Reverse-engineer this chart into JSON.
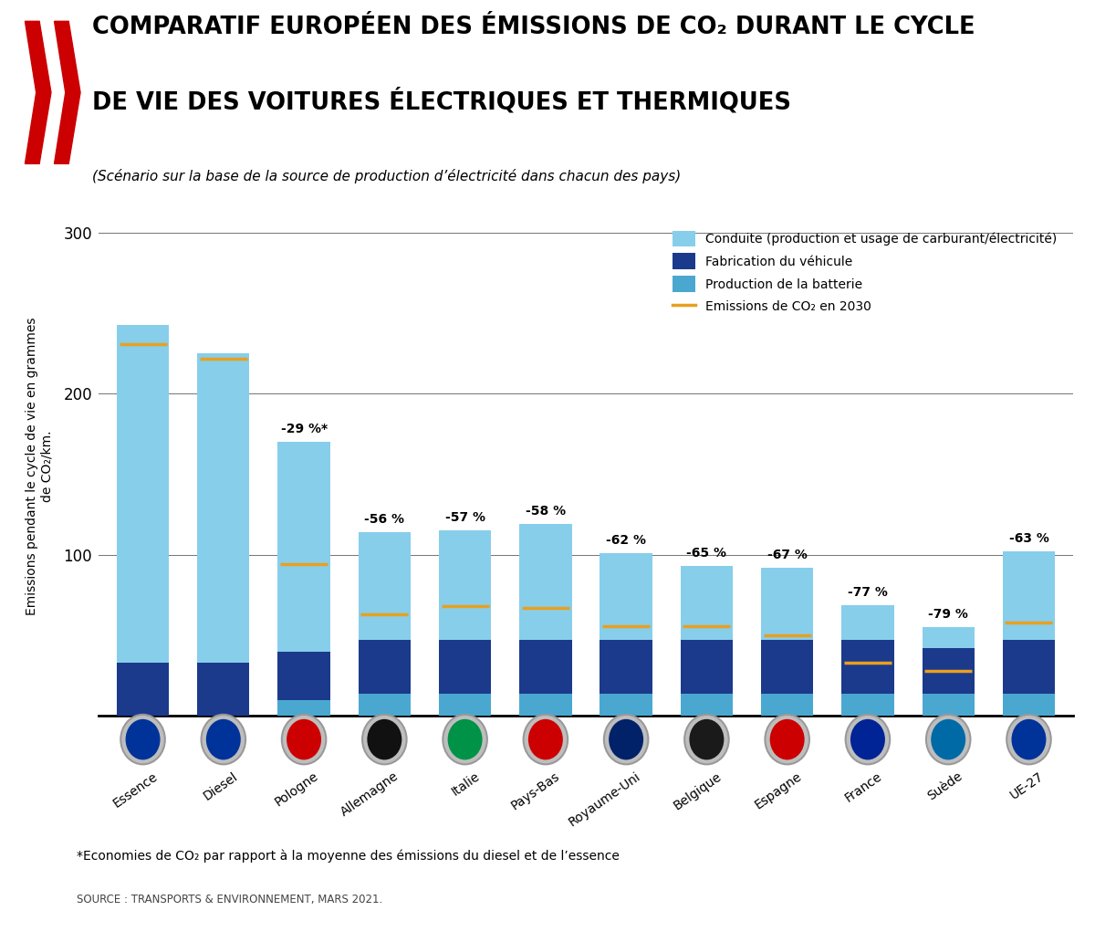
{
  "categories": [
    "Essence",
    "Diesel",
    "Pologne",
    "Allemagne",
    "Italie",
    "Pays-Bas",
    "Royaume-Uni",
    "Belgique",
    "Espagne",
    "France",
    "Suède",
    "UE-27"
  ],
  "conduite": [
    210,
    192,
    130,
    67,
    68,
    72,
    54,
    46,
    45,
    22,
    13,
    55
  ],
  "fabrication": [
    33,
    33,
    30,
    33,
    33,
    33,
    33,
    33,
    33,
    33,
    28,
    33
  ],
  "batterie": [
    0,
    0,
    10,
    14,
    14,
    14,
    14,
    14,
    14,
    14,
    14,
    14
  ],
  "co2_2030": [
    231,
    222,
    94,
    63,
    68,
    67,
    56,
    56,
    50,
    33,
    28,
    58
  ],
  "pct_labels": [
    "",
    "",
    "-29 %*",
    "-56 %",
    "-57 %",
    "-58 %",
    "-62 %",
    "-65 %",
    "-67 %",
    "-77 %",
    "-79 %",
    "-63 %"
  ],
  "color_conduite": "#87CEEB",
  "color_fabrication": "#1B3A8C",
  "color_batterie": "#4AA8D0",
  "color_co2_line": "#E8A020",
  "color_title_red": "#CC0000",
  "legend_conduite": "Conduite (production et usage de carburant/électricité)",
  "legend_fabrication": "Fabrication du véhicule",
  "legend_batterie": "Production de la batterie",
  "legend_co2": "Emissions de CO₂ en 2030",
  "ylabel": "Emissions pendant le cycle de vie en grammes\nde CO₂/km.",
  "footnote": "*Economies de CO₂ par rapport à la moyenne des émissions du diesel et de l’essence",
  "source": "SOURCE : TRANSPORTS & ENVIRONNEMENT, MARS 2021.",
  "ylim": [
    0,
    310
  ],
  "yticks": [
    100,
    200,
    300
  ],
  "flag_inner_colors": [
    "#003399",
    "#003399",
    "#CC0000",
    "#111111",
    "#009246",
    "#CC0000",
    "#012169",
    "#1A1A1A",
    "#CC0000",
    "#002395",
    "#006AA7",
    "#003399"
  ]
}
